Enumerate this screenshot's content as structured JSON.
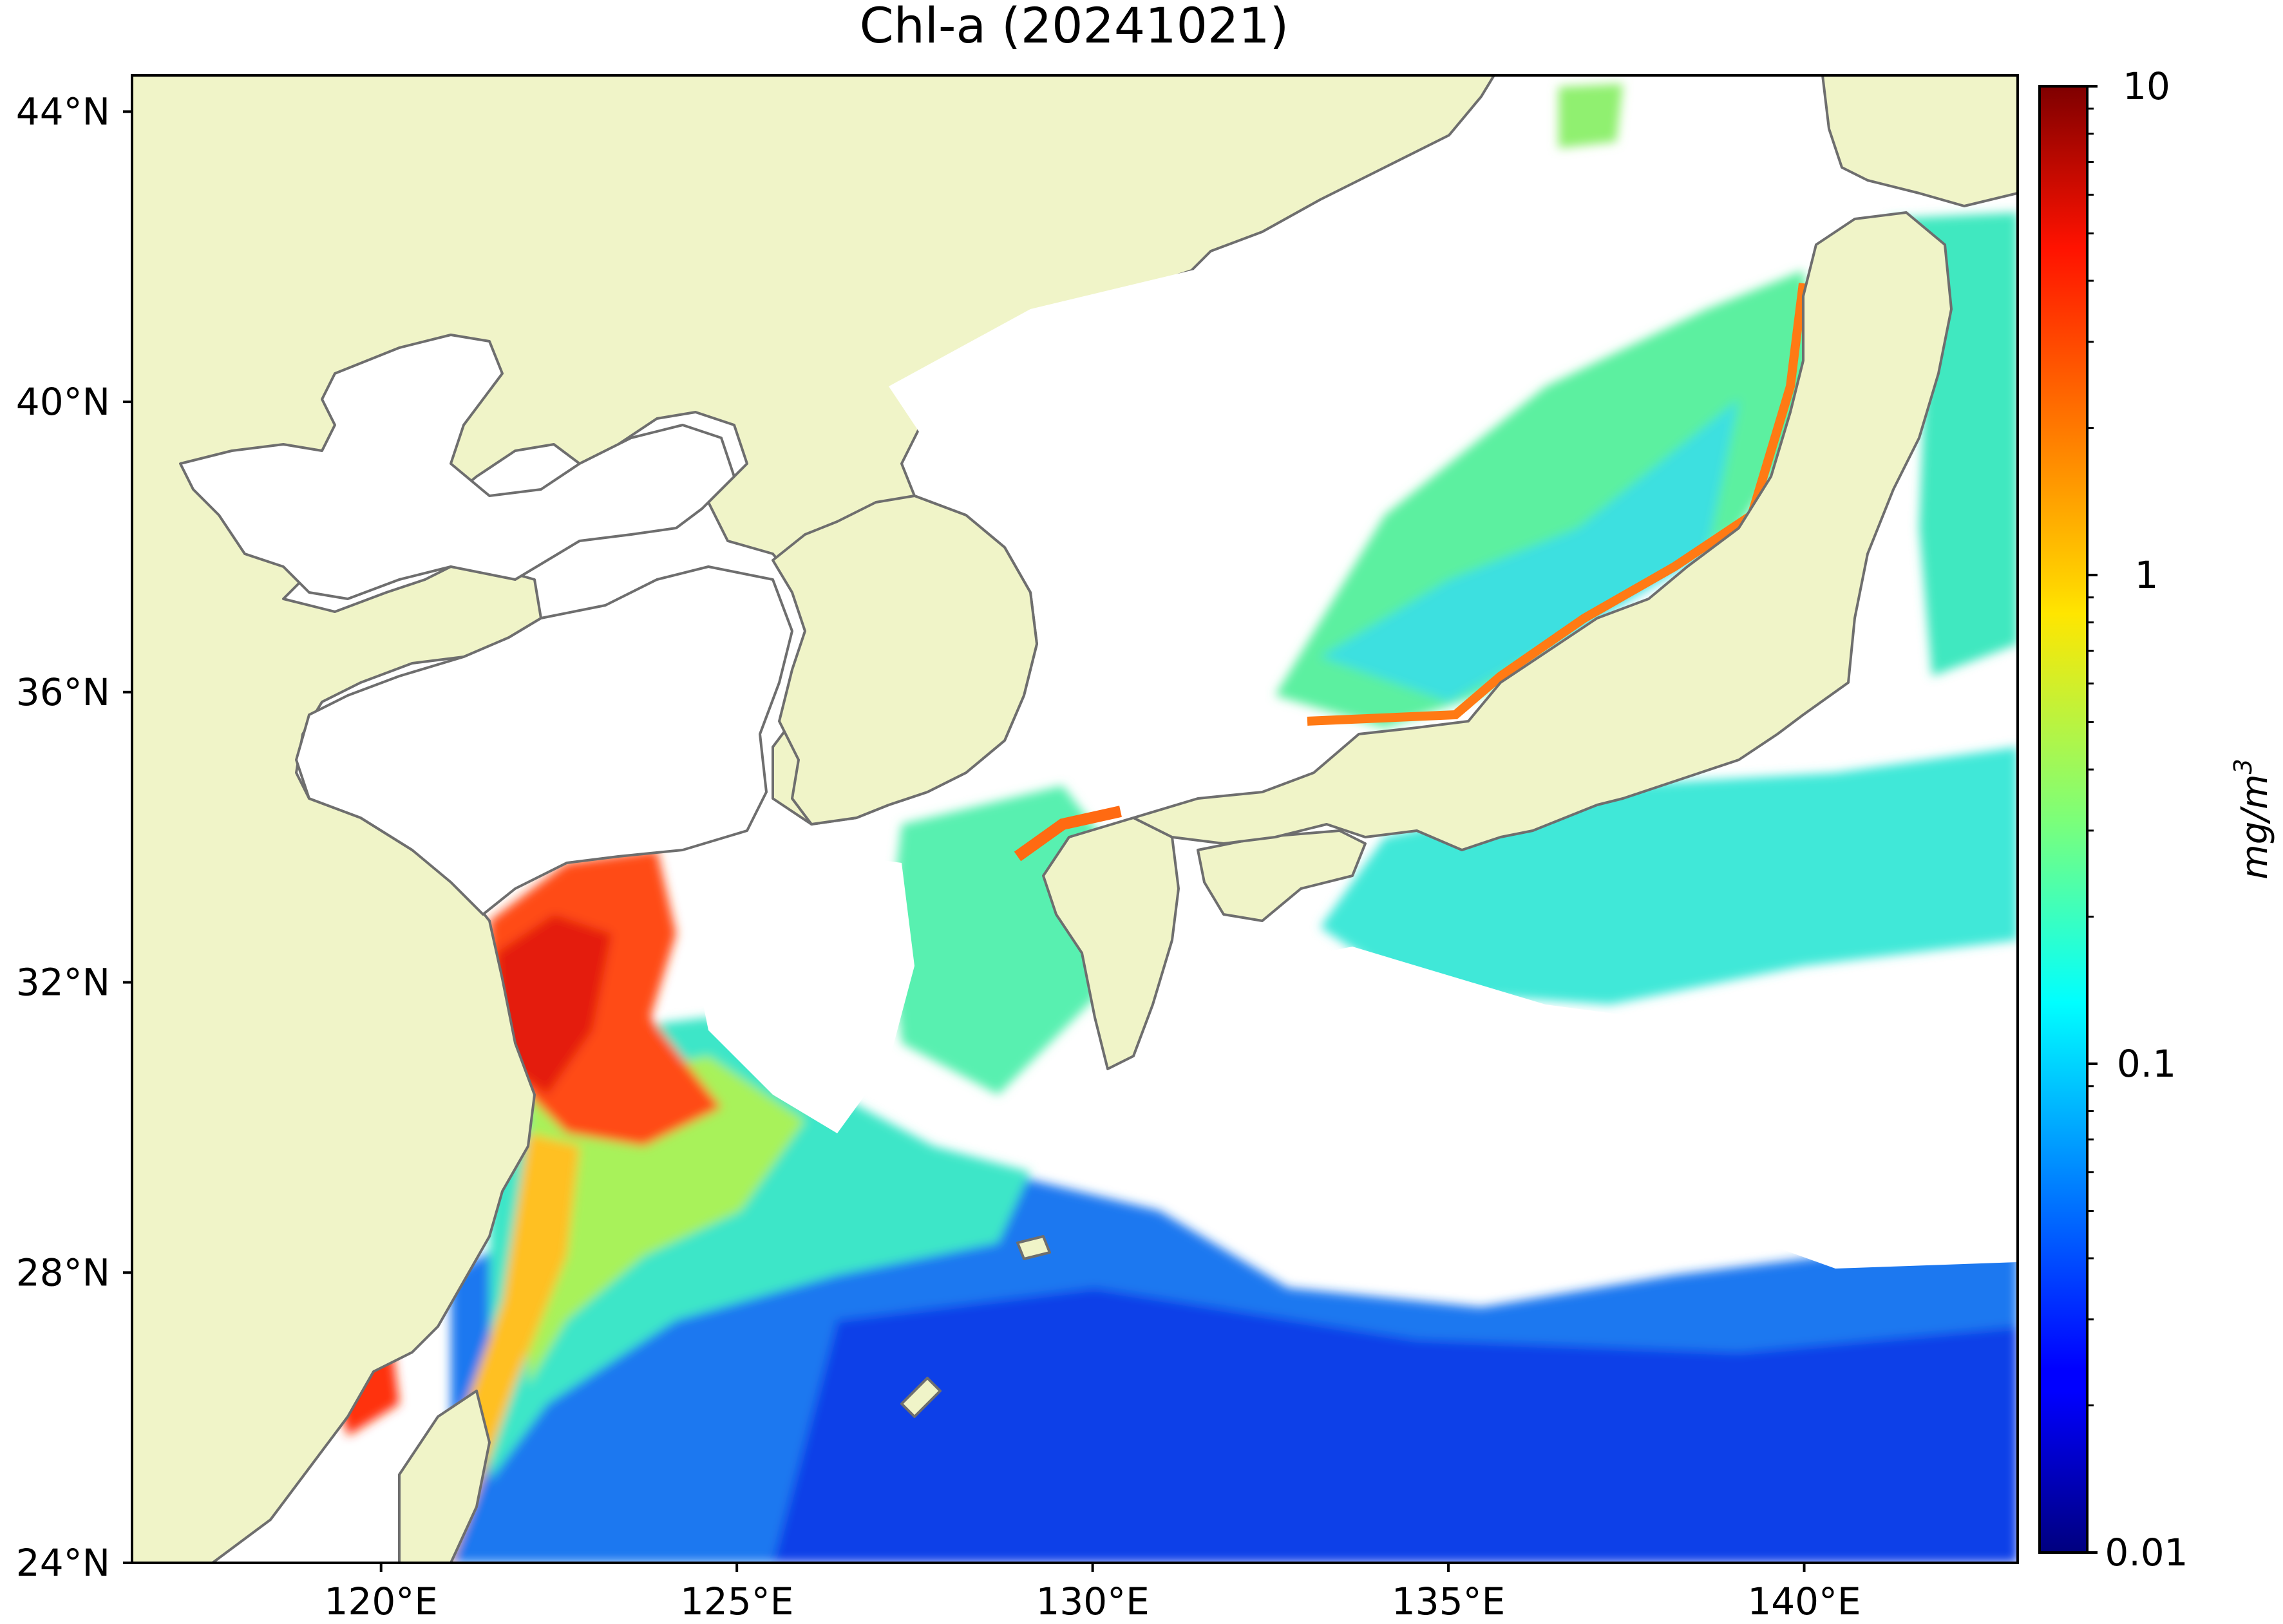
{
  "title": "Chl-a (20241021)",
  "axes": {
    "lat_ticks": [
      {
        "value": 44,
        "label": "44°N"
      },
      {
        "value": 40,
        "label": "40°N"
      },
      {
        "value": 36,
        "label": "36°N"
      },
      {
        "value": 32,
        "label": "32°N"
      },
      {
        "value": 28,
        "label": "28°N"
      },
      {
        "value": 24,
        "label": "24°N"
      }
    ],
    "lon_ticks": [
      {
        "value": 120,
        "label": "120°E"
      },
      {
        "value": 125,
        "label": "125°E"
      },
      {
        "value": 130,
        "label": "130°E"
      },
      {
        "value": 135,
        "label": "135°E"
      },
      {
        "value": 140,
        "label": "140°E"
      }
    ],
    "lon_range": [
      116.5,
      143.0
    ],
    "lat_range": [
      24,
      44.5
    ]
  },
  "colorbar": {
    "label": "mg/m",
    "label_superscript": "3",
    "scale": "log",
    "range": [
      0.01,
      10
    ],
    "colormap": "jet",
    "ticks": [
      {
        "value": 10,
        "label": "10"
      },
      {
        "value": 1,
        "label": "1"
      },
      {
        "value": 0.1,
        "label": "0.1"
      },
      {
        "value": 0.01,
        "label": "0.01"
      }
    ]
  },
  "colors": {
    "land": "#f0f4c8",
    "coastline": "#6e6e6e",
    "no_data": "#ffffff",
    "frame": "#000000"
  }
}
